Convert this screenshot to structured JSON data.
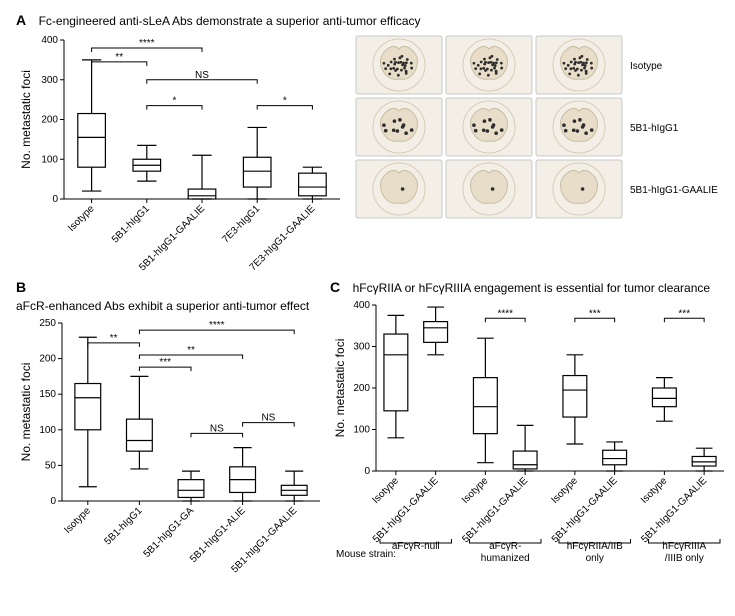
{
  "panelA": {
    "label": "A",
    "title": "Fc-engineered anti-sLeA Abs demonstrate a superior anti-tumor efficacy",
    "chart": {
      "type": "boxplot",
      "ylabel": "No. metastatic foci",
      "ylim": [
        0,
        400
      ],
      "ytick_step": 100,
      "categories": [
        "Isotype",
        "5B1-hIgG1",
        "5B1-hIgG1-GAALIE",
        "7E3-hIgG1",
        "7E3-hIgG1-GAALIE"
      ],
      "boxes": [
        {
          "min": 20,
          "q1": 80,
          "med": 155,
          "q3": 215,
          "max": 350
        },
        {
          "min": 45,
          "q1": 70,
          "med": 85,
          "q3": 100,
          "max": 135
        },
        {
          "min": 0,
          "q1": 0,
          "med": 8,
          "q3": 25,
          "max": 110
        },
        {
          "min": 0,
          "q1": 30,
          "med": 70,
          "q3": 105,
          "max": 180
        },
        {
          "min": 0,
          "q1": 8,
          "med": 30,
          "q3": 65,
          "max": 80
        }
      ],
      "significance": [
        {
          "from": 0,
          "to": 2,
          "label": "****",
          "y": 380
        },
        {
          "from": 0,
          "to": 1,
          "label": "**",
          "y": 345
        },
        {
          "from": 1,
          "to": 3,
          "label": "NS",
          "y": 300
        },
        {
          "from": 1,
          "to": 2,
          "label": "*",
          "y": 235
        },
        {
          "from": 3,
          "to": 4,
          "label": "*",
          "y": 235
        }
      ]
    },
    "photos": {
      "row_labels": [
        "Isotype",
        "5B1-hIgG1",
        "5B1-hIgG1-GAALIE"
      ],
      "dot_density": [
        28,
        10,
        1
      ],
      "cols": 3
    }
  },
  "panelB": {
    "label": "B",
    "title": "aFcR-enhanced Abs exhibit a superior anti-tumor effect",
    "chart": {
      "type": "boxplot",
      "ylabel": "No. metastatic foci",
      "ylim": [
        0,
        250
      ],
      "ytick_step": 50,
      "categories": [
        "Isotype",
        "5B1-hIgG1",
        "5B1-hIgG1-GA",
        "5B1-hIgG1-ALIE",
        "5B1-hIgG1-GAALIE"
      ],
      "boxes": [
        {
          "min": 20,
          "q1": 100,
          "med": 145,
          "q3": 165,
          "max": 230
        },
        {
          "min": 45,
          "q1": 70,
          "med": 85,
          "q3": 115,
          "max": 175
        },
        {
          "min": 0,
          "q1": 5,
          "med": 15,
          "q3": 30,
          "max": 42
        },
        {
          "min": 0,
          "q1": 12,
          "med": 30,
          "q3": 48,
          "max": 75
        },
        {
          "min": 0,
          "q1": 8,
          "med": 15,
          "q3": 22,
          "max": 42
        }
      ],
      "significance": [
        {
          "from": 1,
          "to": 4,
          "label": "****",
          "y": 240
        },
        {
          "from": 0,
          "to": 1,
          "label": "**",
          "y": 222
        },
        {
          "from": 1,
          "to": 3,
          "label": "**",
          "y": 205
        },
        {
          "from": 1,
          "to": 2,
          "label": "***",
          "y": 188
        },
        {
          "from": 2,
          "to": 3,
          "label": "NS",
          "y": 95
        },
        {
          "from": 3,
          "to": 4,
          "label": "NS",
          "y": 110
        }
      ]
    }
  },
  "panelC": {
    "label": "C",
    "title": "hFcγRIIA or hFcγRIIIA engagement is essential for tumor clearance",
    "chart": {
      "type": "boxplot",
      "ylabel": "No. metastatic foci",
      "ylim": [
        0,
        400
      ],
      "ytick_step": 100,
      "groups": [
        {
          "strain": "aFcγR-null",
          "categories": [
            "Isotype",
            "5B1-hIgG1-GAALIE"
          ],
          "boxes": [
            {
              "min": 80,
              "q1": 145,
              "med": 280,
              "q3": 330,
              "max": 375
            },
            {
              "min": 280,
              "q1": 310,
              "med": 345,
              "q3": 360,
              "max": 395
            }
          ],
          "sig": null
        },
        {
          "strain": "aFcγR-humanized",
          "categories": [
            "Isotype",
            "5B1-hIgG1-GAALIE"
          ],
          "boxes": [
            {
              "min": 20,
              "q1": 90,
              "med": 155,
              "q3": 225,
              "max": 320
            },
            {
              "min": 0,
              "q1": 5,
              "med": 15,
              "q3": 48,
              "max": 110
            }
          ],
          "sig": "****"
        },
        {
          "strain": "hFcγRIIA/IIB only",
          "categories": [
            "Isotype",
            "5B1-hIgG1-GAALIE"
          ],
          "boxes": [
            {
              "min": 65,
              "q1": 130,
              "med": 195,
              "q3": 230,
              "max": 280
            },
            {
              "min": 0,
              "q1": 15,
              "med": 30,
              "q3": 50,
              "max": 70
            }
          ],
          "sig": "***"
        },
        {
          "strain": "hFcγRIIIA/IIIB only",
          "categories": [
            "Isotype",
            "5B1-hIgG1-GAALIE"
          ],
          "boxes": [
            {
              "min": 120,
              "q1": 155,
              "med": 175,
              "q3": 200,
              "max": 225
            },
            {
              "min": 0,
              "q1": 12,
              "med": 22,
              "q3": 35,
              "max": 55
            }
          ],
          "sig": "***"
        }
      ],
      "strain_label": "Mouse strain:"
    }
  }
}
